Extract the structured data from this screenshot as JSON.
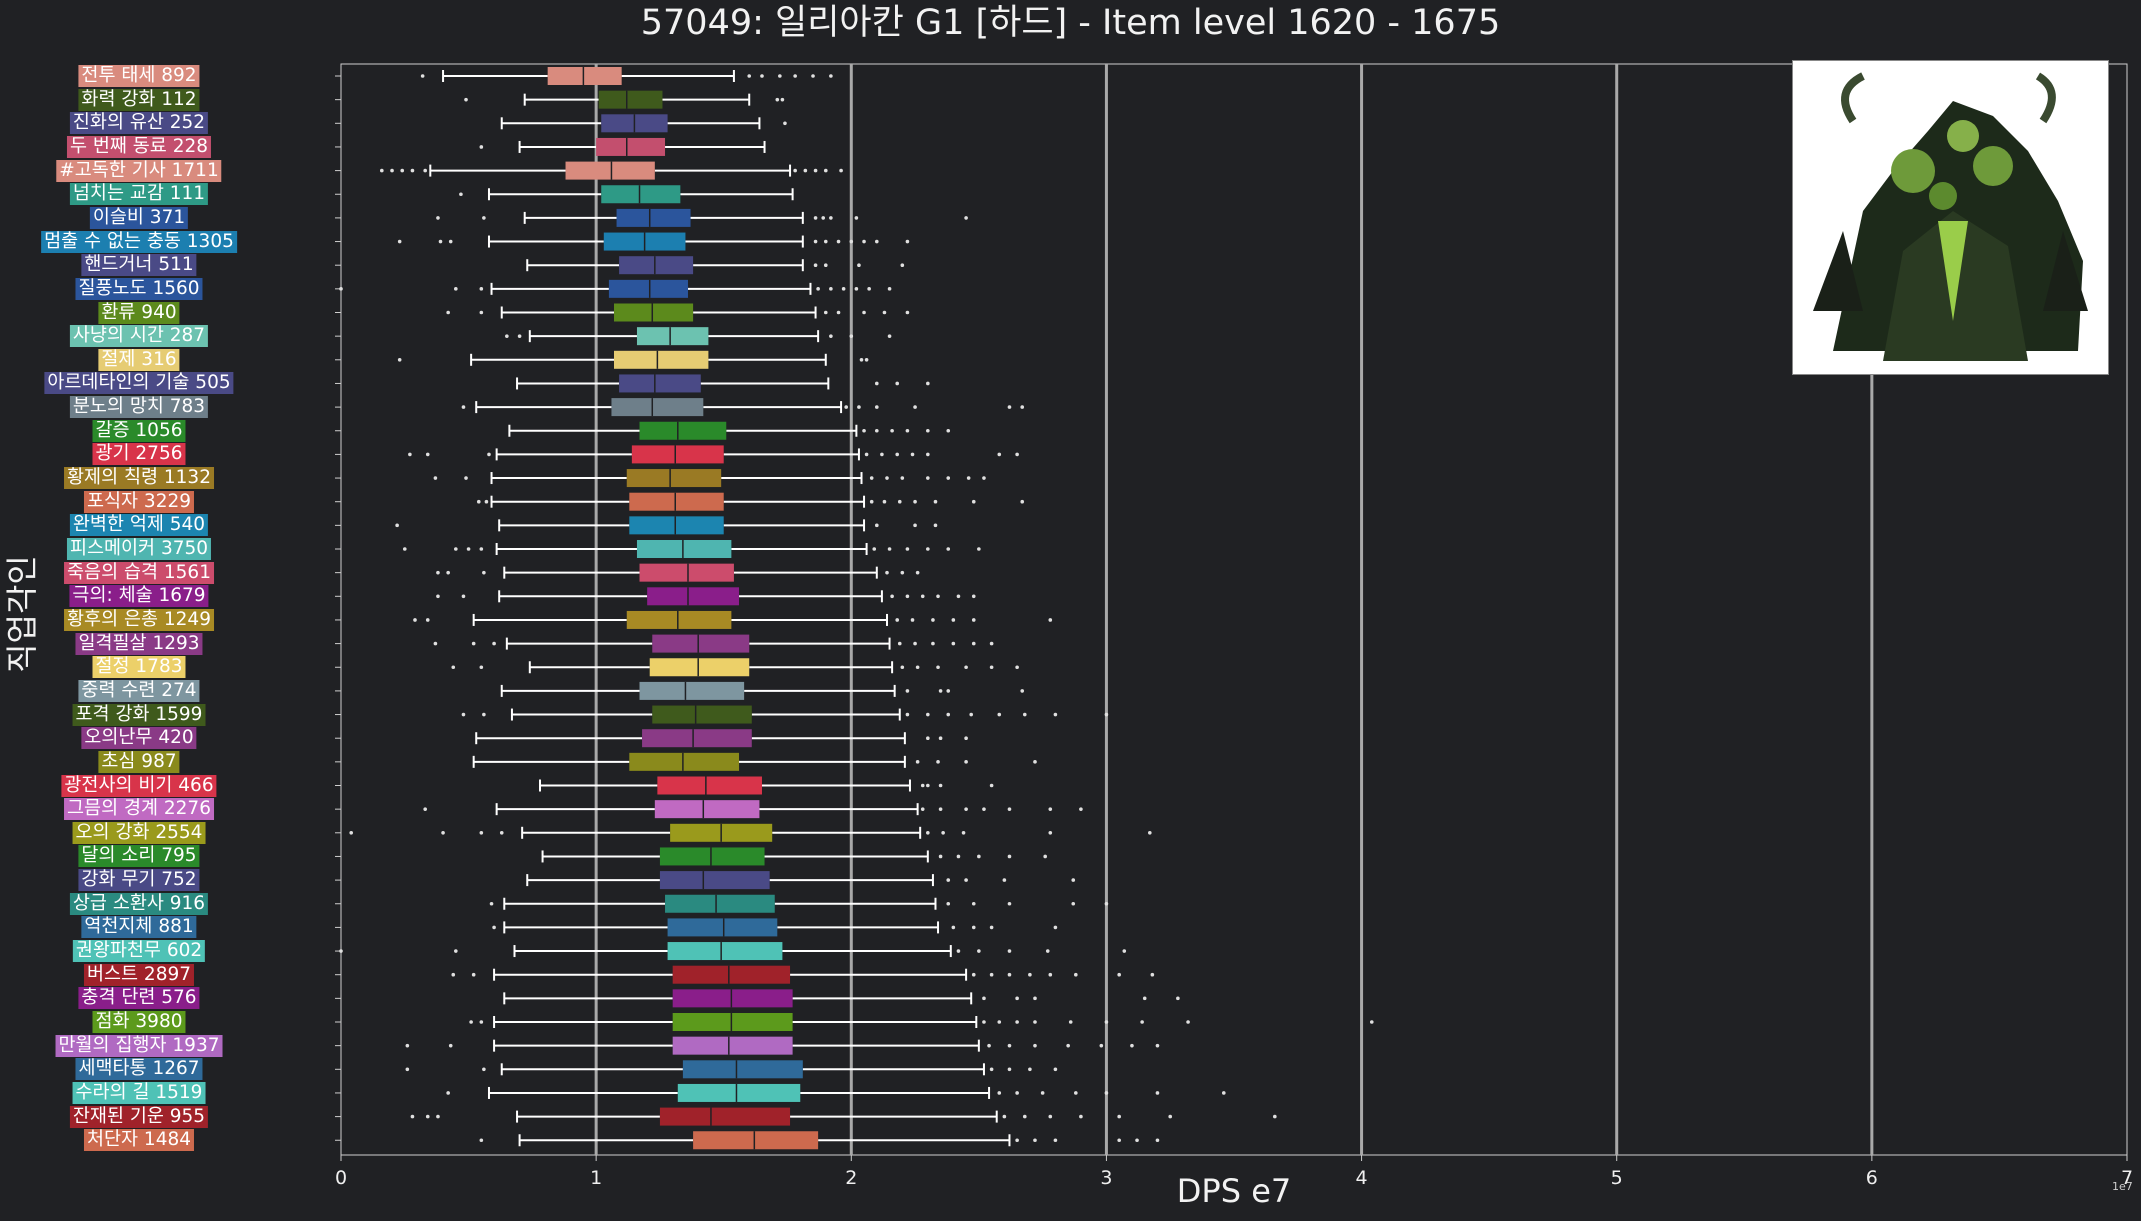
{
  "title": "57049: 일리아칸 G1 [하드] - Item level 1620 - 1675",
  "chart_data": {
    "type": "box",
    "orientation": "horizontal",
    "xlabel": "DPS e7",
    "ylabel": "직업각인",
    "x_exponent_label": "1e7",
    "xlim": [
      0,
      7
    ],
    "x_ticks": [
      "0",
      "1",
      "2",
      "3",
      "4",
      "5",
      "6",
      "7"
    ],
    "grid": "vertical major lines",
    "series": [
      {
        "label": "전투 태세 892",
        "color": "#d98b7e",
        "whisker_low": 0.4,
        "q1": 0.81,
        "median": 0.95,
        "q3": 1.1,
        "whisker_high": 1.54,
        "outliers": [
          0.32,
          1.6,
          1.65,
          1.72,
          1.78,
          1.85,
          1.92
        ]
      },
      {
        "label": "화력 강화 112",
        "color": "#3f5a1c",
        "whisker_low": 0.72,
        "q1": 1.01,
        "median": 1.12,
        "q3": 1.26,
        "whisker_high": 1.6,
        "outliers": [
          0.49,
          1.71,
          1.73
        ]
      },
      {
        "label": "진화의 유산 252",
        "color": "#4a4a86",
        "whisker_low": 0.63,
        "q1": 1.02,
        "median": 1.15,
        "q3": 1.28,
        "whisker_high": 1.64,
        "outliers": [
          1.74
        ]
      },
      {
        "label": "두 번째 동료 228",
        "color": "#c34f6e",
        "whisker_low": 0.7,
        "q1": 1.0,
        "median": 1.12,
        "q3": 1.27,
        "whisker_high": 1.66,
        "outliers": [
          0.55
        ]
      },
      {
        "label": "#고독한 기사 1711",
        "color": "#d98b7e",
        "whisker_low": 0.35,
        "q1": 0.88,
        "median": 1.06,
        "q3": 1.23,
        "whisker_high": 1.76,
        "outliers": [
          0.16,
          0.2,
          0.24,
          0.28,
          0.33,
          1.78,
          1.82,
          1.86,
          1.9,
          1.96
        ]
      },
      {
        "label": "넘치는 교감 111",
        "color": "#2e9a86",
        "whisker_low": 0.58,
        "q1": 1.02,
        "median": 1.17,
        "q3": 1.33,
        "whisker_high": 1.77,
        "outliers": [
          0.47
        ]
      },
      {
        "label": "이슬비 371",
        "color": "#2b559c",
        "whisker_low": 0.72,
        "q1": 1.08,
        "median": 1.21,
        "q3": 1.37,
        "whisker_high": 1.81,
        "outliers": [
          0.38,
          0.56,
          1.86,
          1.89,
          1.92,
          2.02,
          2.45
        ]
      },
      {
        "label": "멈출 수 없는 충동 1305",
        "color": "#1c7fb0",
        "whisker_low": 0.58,
        "q1": 1.03,
        "median": 1.19,
        "q3": 1.35,
        "whisker_high": 1.81,
        "outliers": [
          0.23,
          0.39,
          0.43,
          1.86,
          1.9,
          1.95,
          2.0,
          2.05,
          2.1,
          2.22
        ]
      },
      {
        "label": "핸드거너 511",
        "color": "#4a4a86",
        "whisker_low": 0.73,
        "q1": 1.09,
        "median": 1.23,
        "q3": 1.38,
        "whisker_high": 1.81,
        "outliers": [
          1.86,
          1.9,
          2.03,
          2.2
        ]
      },
      {
        "label": "질풍노도 1560",
        "color": "#2b559c",
        "whisker_low": 0.59,
        "q1": 1.05,
        "median": 1.21,
        "q3": 1.36,
        "whisker_high": 1.84,
        "outliers": [
          0.0,
          0.45,
          0.55,
          1.87,
          1.92,
          1.97,
          2.02,
          2.07,
          2.15
        ]
      },
      {
        "label": "환류 940",
        "color": "#5c8a1c",
        "whisker_low": 0.63,
        "q1": 1.07,
        "median": 1.22,
        "q3": 1.38,
        "whisker_high": 1.86,
        "outliers": [
          0.42,
          0.55,
          1.9,
          1.95,
          2.05,
          2.13,
          2.22
        ]
      },
      {
        "label": "사냥의 시간 287",
        "color": "#6cc2b0",
        "whisker_low": 0.74,
        "q1": 1.16,
        "median": 1.29,
        "q3": 1.44,
        "whisker_high": 1.87,
        "outliers": [
          0.65,
          0.7,
          1.92,
          2.0,
          2.15
        ]
      },
      {
        "label": "절제 316",
        "color": "#e6cc73",
        "whisker_low": 0.51,
        "q1": 1.07,
        "median": 1.24,
        "q3": 1.44,
        "whisker_high": 1.9,
        "outliers": [
          0.23,
          2.04,
          2.06
        ]
      },
      {
        "label": "아르데타인의 기술 505",
        "color": "#4a4a86",
        "whisker_low": 0.69,
        "q1": 1.09,
        "median": 1.23,
        "q3": 1.41,
        "whisker_high": 1.91,
        "outliers": [
          2.1,
          2.18,
          2.3
        ]
      },
      {
        "label": "분노의 망치 783",
        "color": "#6e7f8a",
        "whisker_low": 0.53,
        "q1": 1.06,
        "median": 1.22,
        "q3": 1.42,
        "whisker_high": 1.96,
        "outliers": [
          0.48,
          1.98,
          2.03,
          2.1,
          2.25,
          2.62,
          2.67
        ]
      },
      {
        "label": "갈증 1056",
        "color": "#2a8a2a",
        "whisker_low": 0.66,
        "q1": 1.17,
        "median": 1.32,
        "q3": 1.51,
        "whisker_high": 2.02,
        "outliers": [
          2.05,
          2.1,
          2.16,
          2.22,
          2.3,
          2.38
        ]
      },
      {
        "label": "광기 2756",
        "color": "#d8344a",
        "whisker_low": 0.61,
        "q1": 1.14,
        "median": 1.31,
        "q3": 1.5,
        "whisker_high": 2.03,
        "outliers": [
          0.27,
          0.34,
          0.58,
          2.06,
          2.12,
          2.18,
          2.24,
          2.3,
          2.58,
          2.65
        ]
      },
      {
        "label": "황제의 칙령 1132",
        "color": "#9a7a24",
        "whisker_low": 0.59,
        "q1": 1.12,
        "median": 1.29,
        "q3": 1.49,
        "whisker_high": 2.04,
        "outliers": [
          0.37,
          0.49,
          2.08,
          2.14,
          2.2,
          2.3,
          2.38,
          2.46,
          2.52
        ]
      },
      {
        "label": "포식자 3229",
        "color": "#cd6a4e",
        "whisker_low": 0.59,
        "q1": 1.13,
        "median": 1.31,
        "q3": 1.5,
        "whisker_high": 2.05,
        "outliers": [
          0.54,
          0.57,
          2.08,
          2.13,
          2.19,
          2.25,
          2.33,
          2.48,
          2.67
        ]
      },
      {
        "label": "완벽한 억제 540",
        "color": "#1c85b0",
        "whisker_low": 0.62,
        "q1": 1.13,
        "median": 1.31,
        "q3": 1.5,
        "whisker_high": 2.05,
        "outliers": [
          0.22,
          2.1,
          2.25,
          2.33
        ]
      },
      {
        "label": "피스메이커 3750",
        "color": "#4fb5b0",
        "whisker_low": 0.61,
        "q1": 1.16,
        "median": 1.34,
        "q3": 1.53,
        "whisker_high": 2.06,
        "outliers": [
          0.25,
          0.45,
          0.5,
          0.55,
          2.09,
          2.15,
          2.22,
          2.3,
          2.38,
          2.5
        ]
      },
      {
        "label": "죽음의 습격 1561",
        "color": "#cc4c6c",
        "whisker_low": 0.64,
        "q1": 1.17,
        "median": 1.36,
        "q3": 1.54,
        "whisker_high": 2.1,
        "outliers": [
          0.38,
          0.42,
          0.56,
          2.14,
          2.2,
          2.26
        ]
      },
      {
        "label": "극의: 체술 1679",
        "color": "#8a1e8a",
        "whisker_low": 0.62,
        "q1": 1.2,
        "median": 1.36,
        "q3": 1.56,
        "whisker_high": 2.12,
        "outliers": [
          0.38,
          0.48,
          2.16,
          2.22,
          2.28,
          2.34,
          2.42,
          2.48
        ]
      },
      {
        "label": "황후의 은총 1249",
        "color": "#a88a24",
        "whisker_low": 0.52,
        "q1": 1.12,
        "median": 1.32,
        "q3": 1.53,
        "whisker_high": 2.14,
        "outliers": [
          0.29,
          0.34,
          2.18,
          2.24,
          2.32,
          2.4,
          2.48,
          2.78
        ]
      },
      {
        "label": "일격필살 1293",
        "color": "#8a3a86",
        "whisker_low": 0.65,
        "q1": 1.22,
        "median": 1.4,
        "q3": 1.6,
        "whisker_high": 2.15,
        "outliers": [
          0.37,
          0.52,
          0.6,
          2.19,
          2.25,
          2.32,
          2.4,
          2.48,
          2.55
        ]
      },
      {
        "label": "절정 1783",
        "color": "#ecd069",
        "whisker_low": 0.74,
        "q1": 1.21,
        "median": 1.4,
        "q3": 1.6,
        "whisker_high": 2.16,
        "outliers": [
          0.44,
          0.55,
          2.2,
          2.26,
          2.34,
          2.45,
          2.55,
          2.65
        ]
      },
      {
        "label": "중력 수련 274",
        "color": "#7e96a0",
        "whisker_low": 0.63,
        "q1": 1.17,
        "median": 1.35,
        "q3": 1.58,
        "whisker_high": 2.17,
        "outliers": [
          2.22,
          2.35,
          2.38,
          2.67
        ]
      },
      {
        "label": "포격 강화 1599",
        "color": "#3f5a1c",
        "whisker_low": 0.67,
        "q1": 1.22,
        "median": 1.39,
        "q3": 1.61,
        "whisker_high": 2.19,
        "outliers": [
          0.48,
          0.56,
          2.22,
          2.3,
          2.38,
          2.47,
          2.58,
          2.68,
          2.8,
          3.0
        ]
      },
      {
        "label": "오의난무 420",
        "color": "#8a3a86",
        "whisker_low": 0.53,
        "q1": 1.18,
        "median": 1.38,
        "q3": 1.61,
        "whisker_high": 2.21,
        "outliers": [
          2.3,
          2.35,
          2.45
        ]
      },
      {
        "label": "초심 987",
        "color": "#8a8a1c",
        "whisker_low": 0.52,
        "q1": 1.13,
        "median": 1.34,
        "q3": 1.56,
        "whisker_high": 2.21,
        "outliers": [
          2.26,
          2.34,
          2.45,
          2.72
        ]
      },
      {
        "label": "광전사의 비기 466",
        "color": "#d8344a",
        "whisker_low": 0.78,
        "q1": 1.24,
        "median": 1.43,
        "q3": 1.65,
        "whisker_high": 2.23,
        "outliers": [
          2.28,
          2.3,
          2.35,
          2.55
        ]
      },
      {
        "label": "그믐의 경계 2276",
        "color": "#c06ac2",
        "whisker_low": 0.61,
        "q1": 1.23,
        "median": 1.42,
        "q3": 1.64,
        "whisker_high": 2.26,
        "outliers": [
          0.33,
          2.28,
          2.35,
          2.45,
          2.52,
          2.62,
          2.78,
          2.9
        ]
      },
      {
        "label": "오의 강화 2554",
        "color": "#9a9a1c",
        "whisker_low": 0.71,
        "q1": 1.29,
        "median": 1.49,
        "q3": 1.69,
        "whisker_high": 2.27,
        "outliers": [
          0.04,
          0.4,
          0.55,
          0.63,
          2.3,
          2.36,
          2.44,
          2.78,
          3.17
        ]
      },
      {
        "label": "달의 소리 795",
        "color": "#2a8a2a",
        "whisker_low": 0.79,
        "q1": 1.25,
        "median": 1.45,
        "q3": 1.66,
        "whisker_high": 2.3,
        "outliers": [
          2.35,
          2.42,
          2.5,
          2.62,
          2.76
        ]
      },
      {
        "label": "강화 무기 752",
        "color": "#4a4a86",
        "whisker_low": 0.73,
        "q1": 1.25,
        "median": 1.42,
        "q3": 1.68,
        "whisker_high": 2.32,
        "outliers": [
          2.38,
          2.45,
          2.6,
          2.87
        ]
      },
      {
        "label": "상급 소환사 916",
        "color": "#2a8a80",
        "whisker_low": 0.64,
        "q1": 1.27,
        "median": 1.47,
        "q3": 1.7,
        "whisker_high": 2.33,
        "outliers": [
          0.59,
          2.38,
          2.48,
          2.62,
          2.87,
          3.0
        ]
      },
      {
        "label": "역천지체 881",
        "color": "#2f6a9a",
        "whisker_low": 0.64,
        "q1": 1.28,
        "median": 1.5,
        "q3": 1.71,
        "whisker_high": 2.34,
        "outliers": [
          0.6,
          2.4,
          2.48,
          2.55,
          2.8
        ]
      },
      {
        "label": "권왕파천무 602",
        "color": "#4fc2b6",
        "whisker_low": 0.68,
        "q1": 1.28,
        "median": 1.49,
        "q3": 1.73,
        "whisker_high": 2.39,
        "outliers": [
          0.0,
          0.45,
          2.42,
          2.5,
          2.62,
          2.77,
          3.07
        ]
      },
      {
        "label": "버스트 2897",
        "color": "#a0222a",
        "whisker_low": 0.6,
        "q1": 1.3,
        "median": 1.52,
        "q3": 1.76,
        "whisker_high": 2.45,
        "outliers": [
          0.44,
          0.52,
          2.48,
          2.55,
          2.62,
          2.7,
          2.78,
          2.88,
          3.05,
          3.18
        ]
      },
      {
        "label": "충격 단련 576",
        "color": "#8a1e8a",
        "whisker_low": 0.64,
        "q1": 1.3,
        "median": 1.53,
        "q3": 1.77,
        "whisker_high": 2.47,
        "outliers": [
          2.52,
          2.65,
          2.72,
          3.15,
          3.28
        ]
      },
      {
        "label": "점화 3980",
        "color": "#5c9a1c",
        "whisker_low": 0.6,
        "q1": 1.3,
        "median": 1.53,
        "q3": 1.77,
        "whisker_high": 2.49,
        "outliers": [
          0.51,
          0.55,
          2.52,
          2.58,
          2.65,
          2.72,
          2.86,
          3.0,
          3.14,
          3.32,
          4.04
        ]
      },
      {
        "label": "만월의 집행자 1937",
        "color": "#b06ac2",
        "whisker_low": 0.6,
        "q1": 1.3,
        "median": 1.52,
        "q3": 1.77,
        "whisker_high": 2.5,
        "outliers": [
          0.26,
          0.43,
          2.54,
          2.62,
          2.72,
          2.85,
          2.98,
          3.1,
          3.2
        ]
      },
      {
        "label": "세맥타통 1267",
        "color": "#2f6a9a",
        "whisker_low": 0.63,
        "q1": 1.34,
        "median": 1.55,
        "q3": 1.81,
        "whisker_high": 2.52,
        "outliers": [
          0.26,
          0.56,
          2.55,
          2.62,
          2.7,
          2.8
        ]
      },
      {
        "label": "수라의 길 1519",
        "color": "#4fc2b6",
        "whisker_low": 0.58,
        "q1": 1.32,
        "median": 1.55,
        "q3": 1.8,
        "whisker_high": 2.54,
        "outliers": [
          0.42,
          2.58,
          2.65,
          2.75,
          2.88,
          3.0,
          3.2,
          3.46
        ]
      },
      {
        "label": "잔재된 기운 955",
        "color": "#a0222a",
        "whisker_low": 0.69,
        "q1": 1.25,
        "median": 1.45,
        "q3": 1.76,
        "whisker_high": 2.57,
        "outliers": [
          0.28,
          0.34,
          0.38,
          2.6,
          2.68,
          2.78,
          2.9,
          3.05,
          3.25,
          3.66
        ]
      },
      {
        "label": "처단자 1484",
        "color": "#cd6a4e",
        "whisker_low": 0.7,
        "q1": 1.38,
        "median": 1.62,
        "q3": 1.87,
        "whisker_high": 2.62,
        "outliers": [
          0.55,
          2.65,
          2.72,
          2.8,
          3.05,
          3.12,
          3.2
        ]
      }
    ]
  }
}
